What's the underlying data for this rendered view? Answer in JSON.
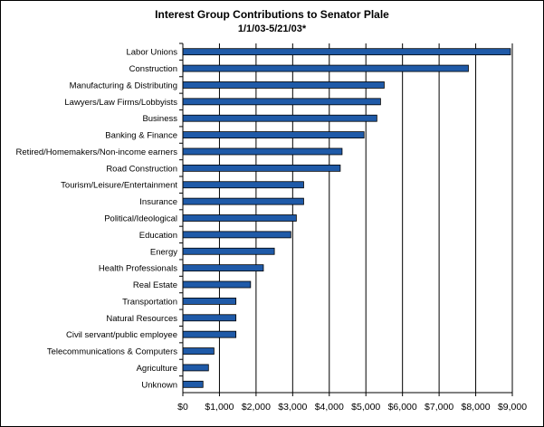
{
  "chart_data": {
    "type": "bar",
    "orientation": "horizontal",
    "title": "Interest Group Contributions to Senator Plale",
    "subtitle": "1/1/03-5/21/03*",
    "xlabel": "",
    "ylabel": "",
    "xlim": [
      0,
      9000
    ],
    "x_ticks": [
      "$0",
      "$1,000",
      "$2,000",
      "$3,000",
      "$4,000",
      "$5,000",
      "$6,000",
      "$7,000",
      "$8,000",
      "$9,000"
    ],
    "grid": "vertical",
    "legend": "none",
    "bar_color": "#1f5aa8",
    "categories": [
      "Labor Unions",
      "Construction",
      "Manufacturing & Distributing",
      "Lawyers/Law Firms/Lobbyists",
      "Business",
      "Banking & Finance",
      "Retired/Homemakers/Non-income earners",
      "Road Construction",
      "Tourism/Leisure/Entertainment",
      "Insurance",
      "Political/Ideological",
      "Education",
      "Energy",
      "Health Professionals",
      "Real Estate",
      "Transportation",
      "Natural Resources",
      "Civil servant/public employee",
      "Telecommunications & Computers",
      "Agriculture",
      "Unknown"
    ],
    "values": [
      8950,
      7800,
      5500,
      5400,
      5300,
      4950,
      4350,
      4300,
      3300,
      3300,
      3100,
      2950,
      2500,
      2200,
      1850,
      1450,
      1450,
      1450,
      850,
      700,
      550
    ]
  }
}
